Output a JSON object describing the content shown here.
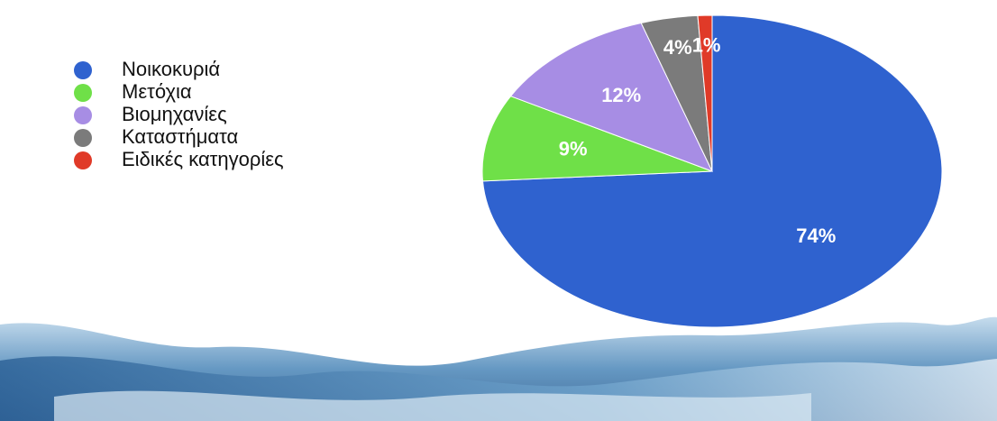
{
  "chart_data": {
    "type": "pie",
    "categories": [
      "Νοικοκυριά",
      "Μετόχια",
      "Βιομηχανίες",
      "Καταστήματα",
      "Ειδικές κατηγορίες"
    ],
    "values": [
      74,
      9,
      12,
      4,
      1
    ],
    "value_labels": [
      "74%",
      "9%",
      "12%",
      "4%",
      "1%"
    ],
    "colors": [
      "#2f62cf",
      "#6fe048",
      "#a78de4",
      "#7b7b7b",
      "#e03a28"
    ],
    "legend": "left"
  }
}
